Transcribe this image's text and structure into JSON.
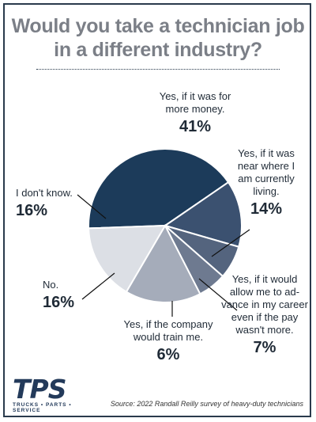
{
  "title": "Would you take a technician job in a different industry?",
  "chart_data": {
    "type": "pie",
    "slices": [
      {
        "label": "Yes, if it was for more money.",
        "value": 41,
        "pct_label": "41%",
        "color": "#1c3b5a"
      },
      {
        "label": "Yes, if it was near where I am currently living.",
        "value": 14,
        "pct_label": "14%",
        "color": "#3b5170"
      },
      {
        "label": "Yes, if it would allow me to advance in my career even if the pay wasn't more.",
        "value": 7,
        "pct_label": "7%",
        "color": "#54647e"
      },
      {
        "label": "Yes, if the company would train me.",
        "value": 6,
        "pct_label": "6%",
        "color": "#6e7a90"
      },
      {
        "label": "No.",
        "value": 16,
        "pct_label": "16%",
        "color": "#a5acba"
      },
      {
        "label": "I don't know.",
        "value": 16,
        "pct_label": "16%",
        "color": "#dcdfe5"
      }
    ]
  },
  "labels": {
    "money_1": "Yes, if it was for",
    "money_2": "more money.",
    "near_1": "Yes, if it was",
    "near_2": "near where I",
    "near_3": "am currently",
    "near_4": "living.",
    "advance_1": "Yes, if it would",
    "advance_2": "allow me to ad-",
    "advance_3": "vance in my career",
    "advance_4": "even if the pay",
    "advance_5": "wasn't more.",
    "train_1": "Yes, if the company",
    "train_2": "would train me.",
    "no": "No.",
    "dont_know": "I don't know."
  },
  "logo": {
    "mark": "TPS",
    "sub": "TRUCKS • PARTS • SERVICE"
  },
  "source": "Source: 2022 Randall Reilly survey of heavy-duty technicians"
}
